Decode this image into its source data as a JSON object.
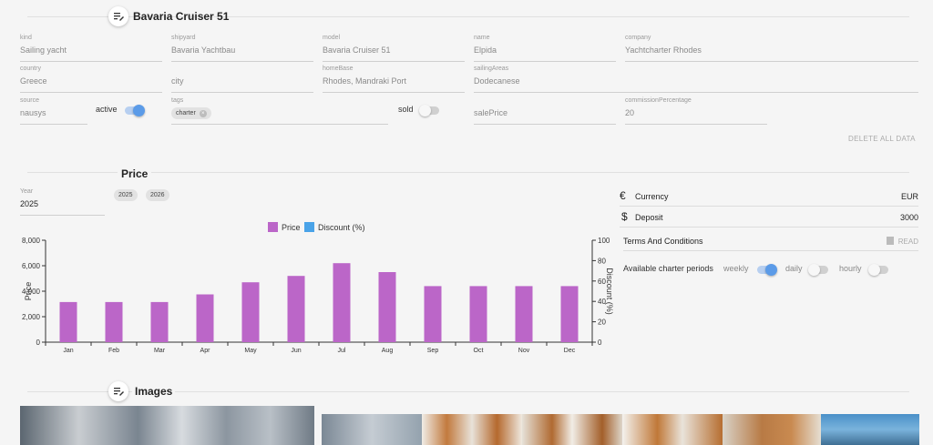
{
  "header": {
    "title": "Bavaria Cruiser 51",
    "icon": "playlist-edit-icon"
  },
  "details": {
    "kind": {
      "label": "kind",
      "value": "Sailing yacht"
    },
    "shipyard": {
      "label": "shipyard",
      "value": "Bavaria Yachtbau"
    },
    "model": {
      "label": "model",
      "value": "Bavaria Cruiser 51"
    },
    "name": {
      "label": "name",
      "value": "Elpida"
    },
    "company": {
      "label": "company",
      "value": "Yachtcharter Rhodes"
    },
    "country": {
      "label": "country",
      "value": "Greece"
    },
    "city": {
      "placeholder": "city"
    },
    "homeBase": {
      "label": "homeBase",
      "value": "Rhodes, Mandraki Port"
    },
    "sailingAreas": {
      "label": "sailingAreas",
      "value": "Dodecanese"
    },
    "source": {
      "label": "source",
      "value": "nausys"
    },
    "active": {
      "label": "active",
      "on": true
    },
    "tags": {
      "label": "tags",
      "chips": [
        "charter"
      ]
    },
    "sold": {
      "label": "sold",
      "on": false
    },
    "salePrice": {
      "placeholder": "salePrice"
    },
    "commissionPercentage": {
      "label": "commissionPercentage",
      "value": "20"
    },
    "delete_label": "DELETE ALL DATA"
  },
  "price": {
    "title": "Price",
    "year_label": "Year",
    "year_value": "2025",
    "year_chips": [
      "2025",
      "2026"
    ],
    "currency": {
      "label": "Currency",
      "value": "EUR",
      "icon": "euro-icon"
    },
    "deposit": {
      "label": "Deposit",
      "value": "3000",
      "icon": "dollar-icon"
    },
    "terms": {
      "label": "Terms And Conditions",
      "button": "READ",
      "icon": "document-icon"
    },
    "charter_periods": {
      "label": "Available charter periods",
      "options": [
        {
          "label": "weekly",
          "on": true
        },
        {
          "label": "daily",
          "on": false
        },
        {
          "label": "hourly",
          "on": false
        }
      ]
    }
  },
  "chart_data": {
    "type": "bar",
    "categories": [
      "Jan",
      "Feb",
      "Mar",
      "Apr",
      "May",
      "Jun",
      "Jul",
      "Aug",
      "Sep",
      "Oct",
      "Nov",
      "Dec"
    ],
    "series": [
      {
        "name": "Price",
        "values": [
          3150,
          3150,
          3150,
          3750,
          4700,
          5200,
          6200,
          5500,
          4400,
          4400,
          4400,
          4400
        ],
        "color": "#bb66c8"
      },
      {
        "name": "Discount (%)",
        "values": [
          0,
          0,
          0,
          0,
          0,
          0,
          0,
          0,
          0,
          0,
          0,
          0
        ],
        "color": "#4aa3e8"
      }
    ],
    "ylabel": "Price",
    "y2label": "Discount (%)",
    "ylim": [
      0,
      8000
    ],
    "y2lim": [
      0,
      100
    ],
    "yticks": [
      "0",
      "2,000",
      "4,000",
      "6,000",
      "8,000"
    ],
    "y2ticks": [
      "0",
      "20",
      "40",
      "60",
      "80",
      "100"
    ],
    "legend": "top-center"
  },
  "images": {
    "title": "Images",
    "icon": "playlist-edit-icon"
  }
}
